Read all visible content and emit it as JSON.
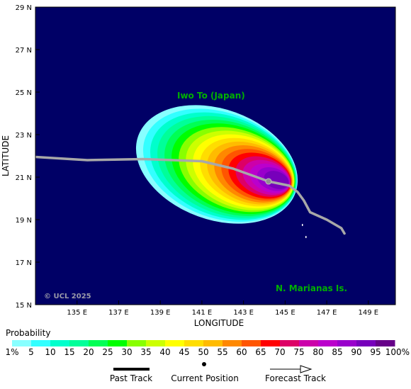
{
  "map": {
    "background_color": "#000066",
    "x_axis_title": "LONGITUDE",
    "y_axis_title": "LATITUDE",
    "lon_ticks": [
      "135 E",
      "137 E",
      "139 E",
      "141 E",
      "143 E",
      "145 E",
      "147 E",
      "149 E"
    ],
    "lat_ticks": [
      "29 N",
      "27 N",
      "25 N",
      "23 N",
      "21 N",
      "19 N",
      "17 N",
      "15 N"
    ],
    "region_labels": {
      "iwo_to": "Iwo To (Japan)",
      "marianas": "N. Marianas Is."
    },
    "copyright": "© UCL 2025",
    "lon_range": [
      133,
      150.3
    ],
    "lat_range": [
      15,
      29
    ],
    "current_position": {
      "lon": 144.2,
      "lat": 20.8
    },
    "track": [
      {
        "lon": 133.0,
        "lat": 21.95
      },
      {
        "lon": 135.5,
        "lat": 21.8
      },
      {
        "lon": 138.2,
        "lat": 21.85
      },
      {
        "lon": 141.0,
        "lat": 21.75
      },
      {
        "lon": 142.5,
        "lat": 21.4
      },
      {
        "lon": 143.5,
        "lat": 21.05
      },
      {
        "lon": 144.2,
        "lat": 20.8
      },
      {
        "lon": 145.2,
        "lat": 20.6
      },
      {
        "lon": 145.6,
        "lat": 20.3
      },
      {
        "lon": 145.9,
        "lat": 19.9
      },
      {
        "lon": 146.2,
        "lat": 19.35
      },
      {
        "lon": 147.0,
        "lat": 19.0
      },
      {
        "lon": 147.7,
        "lat": 18.6
      },
      {
        "lon": 147.85,
        "lat": 18.35
      }
    ]
  },
  "legend": {
    "title": "Probability",
    "labels": [
      "1%",
      "5",
      "10",
      "15",
      "20",
      "25",
      "30",
      "35",
      "40",
      "45",
      "50",
      "55",
      "60",
      "65",
      "70",
      "75",
      "80",
      "85",
      "90",
      "95",
      "100%"
    ],
    "colors": [
      "#88ffff",
      "#33ffff",
      "#00ffcc",
      "#00ff99",
      "#00ff55",
      "#00ff00",
      "#88ff00",
      "#ccff00",
      "#ffff00",
      "#ffdd00",
      "#ffbb00",
      "#ff8800",
      "#ff5500",
      "#ff0000",
      "#dd0066",
      "#cc00aa",
      "#bb00cc",
      "#9900cc",
      "#7700bb",
      "#660088"
    ],
    "past_track_label": "Past Track",
    "current_position_label": "Current Position",
    "forecast_track_label": "Forecast Track"
  }
}
